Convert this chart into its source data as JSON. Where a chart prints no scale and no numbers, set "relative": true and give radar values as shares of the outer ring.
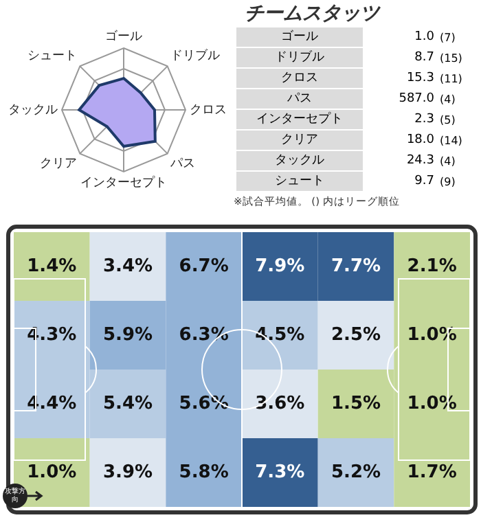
{
  "chart_data": [
    {
      "type": "radar",
      "relative": true,
      "grid": true,
      "marker": "none",
      "legend": false,
      "categories": [
        "ゴール",
        "ドリブル",
        "クロス",
        "パス",
        "インターセプト",
        "クリア",
        "タックル",
        "シュート"
      ],
      "series": [
        {
          "color": "#1f3a6a",
          "values": [
            0.51,
            0.39,
            0.5,
            0.72,
            0.59,
            0.38,
            0.72,
            0.56
          ]
        }
      ]
    },
    {
      "type": "other",
      "title": "チームスタッツ",
      "categories": [
        "ゴール",
        "ドリブル",
        "クロス",
        "パス",
        "インターセプト",
        "クリア",
        "タックル",
        "シュート"
      ],
      "series": [
        {
          "values": [
            1.0,
            8.7,
            15.3,
            587.0,
            2.3,
            18.0,
            24.3,
            9.7
          ],
          "value_labels": [
            "1.0",
            "8.7",
            "15.3",
            "587.0",
            "2.3",
            "18.0",
            "24.3",
            "9.7"
          ]
        },
        {
          "values": [
            7,
            15,
            11,
            4,
            5,
            14,
            4,
            9
          ],
          "value_labels": [
            "(7)",
            "(15)",
            "(11)",
            "(4)",
            "(5)",
            "(14)",
            "(4)",
            "(9)"
          ]
        }
      ],
      "annotations": [
        "※試合平均値。 () 内はリーグ順位"
      ]
    },
    {
      "type": "heatmap",
      "categories": [
        null,
        null,
        null,
        null,
        null,
        null
      ],
      "y_categories": [
        null,
        null,
        null,
        null
      ],
      "cells": [
        [
          1.4,
          3.4,
          6.7,
          7.9,
          7.7,
          2.1
        ],
        [
          4.3,
          5.9,
          6.3,
          4.5,
          2.5,
          1.0
        ],
        [
          4.4,
          5.4,
          5.6,
          3.6,
          1.5,
          1.0
        ],
        [
          1.0,
          3.9,
          5.8,
          7.3,
          5.2,
          1.7
        ]
      ],
      "cell_labels": [
        [
          "1.4%",
          "3.4%",
          "6.7%",
          "7.9%",
          "7.7%",
          "2.1%"
        ],
        [
          "4.3%",
          "5.9%",
          "6.3%",
          "4.5%",
          "2.5%",
          "1.0%"
        ],
        [
          "4.4%",
          "5.4%",
          "5.6%",
          "3.6%",
          "1.5%",
          "1.0%"
        ],
        [
          "1.0%",
          "3.9%",
          "5.8%",
          "7.3%",
          "5.2%",
          "1.7%"
        ]
      ],
      "colors": [
        [
          "#c5d89a",
          "#dde6f0",
          "#93b3d7",
          "#355f91",
          "#355f91",
          "#c5d89a"
        ],
        [
          "#b7cce3",
          "#93b3d7",
          "#93b3d7",
          "#b7cce3",
          "#dde6f0",
          "#c5d89a"
        ],
        [
          "#b7cce3",
          "#b7cce3",
          "#93b3d7",
          "#dde6f0",
          "#c5d89a",
          "#c5d89a"
        ],
        [
          "#c5d89a",
          "#dde6f0",
          "#93b3d7",
          "#355f91",
          "#b7cce3",
          "#c5d89a"
        ]
      ],
      "annotations": [
        "攻撃方向"
      ]
    }
  ]
}
